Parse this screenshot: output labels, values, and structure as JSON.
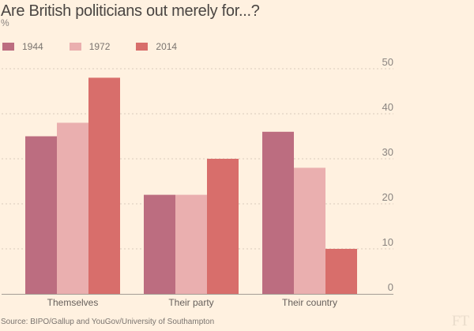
{
  "chart_data": {
    "type": "bar",
    "title": "Are British politicians out merely for...?",
    "unit": "%",
    "categories": [
      "Themselves",
      "Their party",
      "Their country"
    ],
    "series": [
      {
        "name": "1944",
        "color": "#bc6d80",
        "values": [
          35,
          22,
          36
        ]
      },
      {
        "name": "1972",
        "color": "#eaafaf",
        "values": [
          38,
          22,
          28
        ]
      },
      {
        "name": "2014",
        "color": "#d86e6b",
        "values": [
          48,
          30,
          10
        ]
      }
    ],
    "yticks": [
      "0",
      "10",
      "20",
      "30",
      "40",
      "50"
    ],
    "ylim": [
      0,
      50
    ],
    "grid": true,
    "legend": "top-left",
    "source": "Source: BIPO/Gallup and YouGov/University of Southampton",
    "logo": "FT"
  }
}
